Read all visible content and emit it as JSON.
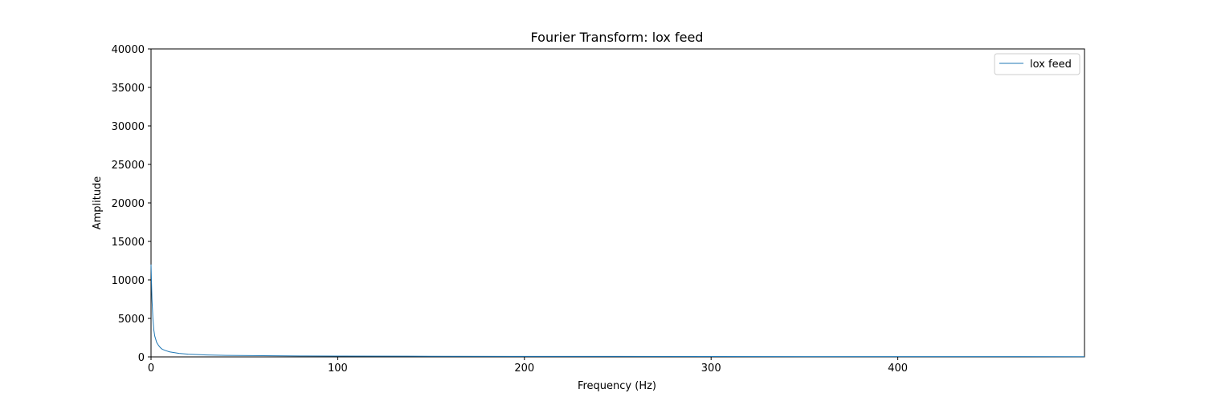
{
  "chart_data": {
    "type": "line",
    "title": "Fourier Transform: lox feed",
    "xlabel": "Frequency (Hz)",
    "ylabel": "Amplitude",
    "xlim": [
      0,
      500
    ],
    "ylim": [
      0,
      40000
    ],
    "xticks": [
      0,
      100,
      200,
      300,
      400
    ],
    "yticks": [
      0,
      5000,
      10000,
      15000,
      20000,
      25000,
      30000,
      35000,
      40000
    ],
    "xtick_labels": [
      "0",
      "100",
      "200",
      "300",
      "400"
    ],
    "ytick_labels": [
      "0",
      "5000",
      "10000",
      "15000",
      "20000",
      "25000",
      "30000",
      "35000",
      "40000"
    ],
    "grid": false,
    "legend_position": "top-right",
    "series": [
      {
        "name": "lox feed",
        "color": "#1f77b4",
        "x": [
          0,
          0.5,
          1,
          1.5,
          2,
          3,
          4,
          5,
          6,
          8,
          10,
          15,
          20,
          30,
          40,
          60,
          80,
          100,
          150,
          200,
          250,
          300,
          350,
          400,
          450,
          500
        ],
        "y": [
          12000,
          7500,
          5000,
          3500,
          2700,
          1900,
          1500,
          1200,
          1000,
          800,
          650,
          450,
          350,
          250,
          200,
          150,
          120,
          100,
          80,
          70,
          60,
          50,
          45,
          40,
          35,
          30
        ]
      }
    ]
  }
}
